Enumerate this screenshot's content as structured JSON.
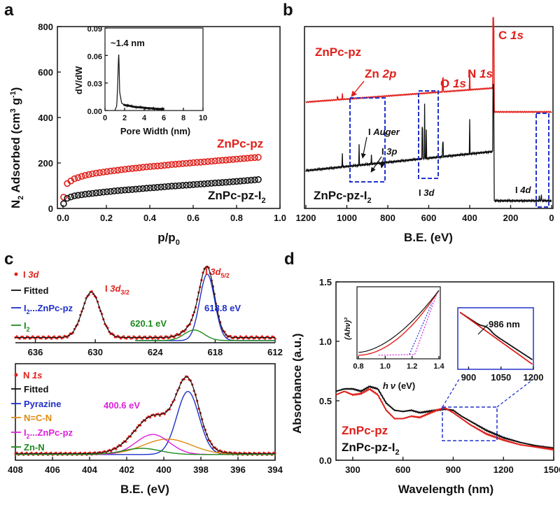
{
  "panels": {
    "a": {
      "letter": "a",
      "ylabel_parts": [
        "N",
        "2",
        " Adsorbed (cm",
        "3",
        " g",
        "-1",
        ")"
      ],
      "xlabel_parts": [
        "p/p",
        "0"
      ],
      "xticks": [
        "0.0",
        "0.2",
        "0.4",
        "0.6",
        "0.8",
        "1.0"
      ],
      "yticks": [
        "0",
        "200",
        "400",
        "600",
        "800"
      ],
      "legend_top": "ZnPc-pz",
      "legend_bottom_parts": [
        "ZnPc-pz-I",
        "2"
      ],
      "inset": {
        "ylabel": "dV/dW",
        "xlabel": "Pore Width (nm)",
        "annotation": "~1.4 nm",
        "xticks": [
          "0",
          "2",
          "4",
          "6",
          "8",
          "10"
        ],
        "yticks": [
          "0.00",
          "0.03",
          "0.06",
          "0.09"
        ]
      }
    },
    "b": {
      "letter": "b",
      "xlabel": "B.E. (eV)",
      "xticks": [
        "1200",
        "1000",
        "800",
        "600",
        "400",
        "200",
        "0"
      ],
      "label_top": "ZnPc-pz",
      "label_bottom_parts": [
        "ZnPc-pz-I",
        "2"
      ],
      "peaks": {
        "zn2p": [
          "Zn ",
          "2p"
        ],
        "o1s": [
          "O ",
          "1s"
        ],
        "n1s": [
          "N ",
          "1s"
        ],
        "c1s": [
          "C ",
          "1s"
        ],
        "auger": [
          "I ",
          "Auger"
        ],
        "i3p": [
          "I ",
          "3p"
        ],
        "i3d": [
          "I ",
          "3d"
        ],
        "i4d": [
          "I ",
          "4d"
        ]
      }
    },
    "c": {
      "letter": "c",
      "xlabel": "B.E. (eV)",
      "top": {
        "xticks": [
          "636",
          "630",
          "624",
          "618",
          "612"
        ],
        "legend": {
          "data_parts": [
            "I ",
            "3d"
          ],
          "fitted": "Fitted",
          "i2zn_parts": [
            "I",
            "2",
            "...ZnPc-pz"
          ],
          "i2_parts": [
            "I",
            "2"
          ]
        },
        "labels": {
          "d32_parts": [
            "I ",
            "3d",
            "3/2"
          ],
          "d52_parts": [
            "I ",
            "3d",
            "5/2"
          ],
          "e620": "620.1 eV",
          "e618": "618.8 eV"
        }
      },
      "bottom": {
        "xticks": [
          "408",
          "406",
          "404",
          "402",
          "400",
          "398",
          "396",
          "394"
        ],
        "legend": {
          "data_parts": [
            "N ",
            "1s"
          ],
          "fitted": "Fitted",
          "pyrazine": "Pyrazine",
          "ncn": "N=C-N",
          "i2zn_parts": [
            "I",
            "2",
            "...ZnPc-pz"
          ],
          "znn": "Zn-N"
        },
        "labels": {
          "e400": "400.6 eV"
        }
      }
    },
    "d": {
      "letter": "d",
      "ylabel": "Absorbance (a.u.)",
      "xlabel": "Wavelength (nm)",
      "xticks": [
        "300",
        "600",
        "900",
        "1200",
        "1500"
      ],
      "yticks": [
        "0.0",
        "0.5",
        "1.0",
        "1.5"
      ],
      "legend_top": "ZnPc-pz",
      "legend_bottom_parts": [
        "ZnPc-pz-I",
        "2"
      ],
      "inset1": {
        "xticks": [
          "0.8",
          "1.0",
          "1.2",
          "1.4"
        ],
        "xlabel_parts": [
          "h",
          "ν",
          " (eV)"
        ],
        "ylabel": "(Ahν)²"
      },
      "inset2": {
        "xticks": [
          "900",
          "1050",
          "1200"
        ],
        "annotation": "986 nm"
      }
    }
  },
  "colors": {
    "red": "#e0201b",
    "black": "#111111",
    "blue": "#1f2fc8",
    "green": "#1c8a1c",
    "magenta": "#dd21dd",
    "orange": "#e08a10",
    "dash": "#2233cc"
  },
  "chart_data": [
    {
      "type": "scatter",
      "panel": "a",
      "title": "",
      "xlabel": "p/p0",
      "ylabel": "N2 Adsorbed (cm3 g-1)",
      "xlim": [
        0,
        1.0
      ],
      "ylim": [
        0,
        800
      ],
      "x": [
        0.0,
        0.01,
        0.02,
        0.05,
        0.1,
        0.15,
        0.2,
        0.25,
        0.3,
        0.35,
        0.4,
        0.45,
        0.5,
        0.55,
        0.6,
        0.65,
        0.7,
        0.75,
        0.8,
        0.85,
        0.9
      ],
      "series": [
        {
          "name": "ZnPc-pz",
          "values": [
            30,
            95,
            110,
            130,
            145,
            155,
            162,
            168,
            174,
            179,
            184,
            188,
            193,
            197,
            201,
            205,
            209,
            213,
            217,
            221,
            225
          ]
        },
        {
          "name": "ZnPc-pz-I2",
          "values": [
            15,
            35,
            45,
            55,
            62,
            68,
            73,
            78,
            82,
            86,
            90,
            94,
            98,
            101,
            105,
            108,
            112,
            115,
            119,
            123,
            127
          ]
        }
      ]
    },
    {
      "type": "line",
      "panel": "a-inset",
      "title": "",
      "xlabel": "Pore Width (nm)",
      "ylabel": "dV/dW",
      "xlim": [
        0,
        10
      ],
      "ylim": [
        0,
        0.09
      ],
      "x": [
        1.0,
        1.2,
        1.3,
        1.4,
        1.5,
        1.7,
        2.0,
        2.5,
        3.0,
        4.0,
        5.0,
        6.0
      ],
      "series": [
        {
          "name": "PSD",
          "values": [
            0.0,
            0.005,
            0.03,
            0.065,
            0.02,
            0.008,
            0.006,
            0.005,
            0.004,
            0.003,
            0.002,
            0.0015
          ]
        }
      ]
    },
    {
      "type": "line",
      "panel": "b",
      "title": "",
      "xlabel": "B.E. (eV)",
      "ylabel": "",
      "xlim": [
        1200,
        0
      ],
      "x": [
        1200,
        1022,
        1000,
        900,
        800,
        650,
        620,
        531,
        400,
        285,
        280,
        200,
        100,
        50,
        0
      ],
      "series": [
        {
          "name": "ZnPc-pz",
          "values": [
            1.0,
            1.5,
            1.02,
            1.07,
            1.11,
            1.18,
            1.19,
            1.5,
            1.4,
            2.4,
            0.98,
            0.98,
            0.98,
            0.98,
            0.98
          ]
        },
        {
          "name": "ZnPc-pz-I2",
          "values": [
            0.55,
            0.55,
            0.5,
            0.6,
            0.62,
            0.66,
            1.0,
            0.9,
            0.9,
            1.5,
            0.25,
            0.25,
            0.24,
            0.3,
            0.23
          ]
        }
      ]
    },
    {
      "type": "line",
      "panel": "c-top",
      "title": "",
      "xlabel": "B.E. (eV)",
      "ylabel": "",
      "xlim": [
        638,
        612
      ],
      "x": [
        638,
        634,
        632,
        630.4,
        629,
        626,
        622,
        620.1,
        618.8,
        617.5,
        616,
        612
      ],
      "series": [
        {
          "name": "I 3d",
          "values": [
            0.05,
            0.08,
            0.2,
            0.62,
            0.2,
            0.05,
            0.05,
            0.2,
            1.0,
            0.3,
            0.04,
            0.02
          ]
        },
        {
          "name": "I2...ZnPc-pz",
          "values": [
            0,
            0,
            0,
            0,
            0,
            0,
            0.02,
            0.2,
            0.85,
            0.2,
            0,
            0
          ]
        },
        {
          "name": "I2",
          "values": [
            0,
            0,
            0,
            0,
            0,
            0,
            0.05,
            0.16,
            0.08,
            0.02,
            0,
            0
          ]
        }
      ]
    },
    {
      "type": "line",
      "panel": "c-bottom",
      "title": "",
      "xlabel": "B.E. (eV)",
      "ylabel": "",
      "xlim": [
        408,
        394
      ],
      "x": [
        408,
        404,
        402,
        401,
        400.6,
        399.5,
        398.7,
        397.5,
        396,
        394
      ],
      "series": [
        {
          "name": "N 1s",
          "values": [
            0.02,
            0.04,
            0.2,
            0.42,
            0.44,
            0.5,
            1.0,
            0.35,
            0.03,
            0.0
          ]
        },
        {
          "name": "Pyrazine",
          "values": [
            0,
            0,
            0,
            0.03,
            0.1,
            0.4,
            0.9,
            0.3,
            0.01,
            0
          ]
        },
        {
          "name": "N=C-N",
          "values": [
            0,
            0,
            0.03,
            0.12,
            0.18,
            0.22,
            0.15,
            0.05,
            0,
            0
          ]
        },
        {
          "name": "I2...ZnPc-pz",
          "values": [
            0,
            0.01,
            0.08,
            0.2,
            0.25,
            0.15,
            0.05,
            0.01,
            0,
            0
          ]
        },
        {
          "name": "Zn-N",
          "values": [
            0,
            0.01,
            0.06,
            0.08,
            0.06,
            0.03,
            0.01,
            0,
            0,
            0
          ]
        }
      ]
    },
    {
      "type": "line",
      "panel": "d",
      "title": "",
      "xlabel": "Wavelength (nm)",
      "ylabel": "Absorbance (a.u.)",
      "xlim": [
        200,
        1500
      ],
      "ylim": [
        0,
        1.5
      ],
      "x": [
        200,
        250,
        300,
        350,
        400,
        450,
        500,
        550,
        600,
        650,
        700,
        750,
        800,
        850,
        900,
        950,
        1000,
        1100,
        1200,
        1300,
        1400,
        1500
      ],
      "series": [
        {
          "name": "ZnPc-pz",
          "values": [
            0.55,
            0.58,
            0.55,
            0.56,
            0.6,
            0.55,
            0.42,
            0.35,
            0.35,
            0.37,
            0.36,
            0.39,
            0.42,
            0.44,
            0.4,
            0.35,
            0.3,
            0.22,
            0.17,
            0.13,
            0.11,
            0.09
          ]
        },
        {
          "name": "ZnPc-pz-I2",
          "values": [
            0.58,
            0.6,
            0.6,
            0.58,
            0.62,
            0.6,
            0.48,
            0.42,
            0.41,
            0.42,
            0.4,
            0.41,
            0.42,
            0.43,
            0.42,
            0.37,
            0.33,
            0.25,
            0.19,
            0.15,
            0.12,
            0.1
          ]
        }
      ]
    }
  ]
}
